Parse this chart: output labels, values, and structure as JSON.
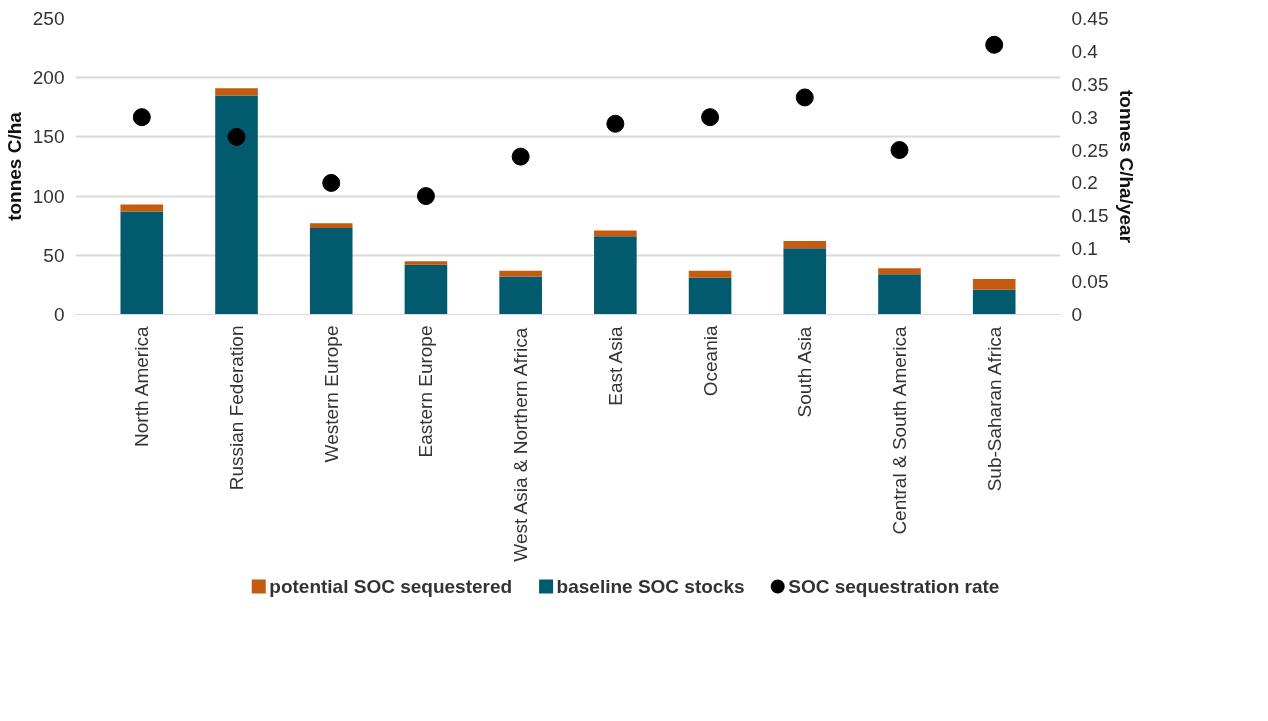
{
  "chart_data": {
    "type": "bar",
    "stacked": true,
    "ylabel": "tonnes C/ha",
    "y2label": "tonnes C/ha/year",
    "categories": [
      "North America",
      "Russian Federation",
      "Western Europe",
      "Eastern Europe",
      "West Asia & Northern Africa",
      "East Asia",
      "Oceania",
      "South Asia",
      "Central & South America",
      "Sub-Saharan Africa"
    ],
    "series": [
      {
        "name": "baseline SOC stocks",
        "color": "#025a6e",
        "values": [
          87,
          185,
          73,
          42,
          32,
          66,
          31,
          56,
          34,
          21
        ]
      },
      {
        "name": "potential SOC sequestered",
        "color": "#c55a11",
        "values": [
          6,
          6,
          4,
          3,
          5,
          5,
          6,
          6,
          5,
          9
        ]
      },
      {
        "name": "SOC sequestration rate",
        "type": "scatter",
        "axis": "y2",
        "color": "#000000",
        "marker": "circle",
        "values": [
          0.3,
          0.27,
          0.2,
          0.18,
          0.24,
          0.29,
          0.3,
          0.33,
          0.25,
          0.41
        ]
      }
    ],
    "ylim": [
      0,
      250
    ],
    "yticks": [
      0,
      50,
      100,
      150,
      200,
      250
    ],
    "y2lim": [
      0,
      0.45
    ],
    "y2ticks": [
      0,
      {
        "value": 0.05,
        "label": "0.05"
      },
      {
        "value": 0.1,
        "label": "0.1"
      },
      {
        "value": 0.15,
        "label": "0.15"
      },
      {
        "value": 0.2,
        "label": "0.2"
      },
      {
        "value": 0.25,
        "label": "0.25"
      },
      {
        "value": 0.3,
        "label": "0.3"
      },
      {
        "value": 0.35,
        "label": "0.35"
      },
      {
        "value": 0.4,
        "label": "0.4"
      },
      {
        "value": 0.45,
        "label": "0.45"
      }
    ],
    "grid": "y",
    "legend": "bottom"
  }
}
